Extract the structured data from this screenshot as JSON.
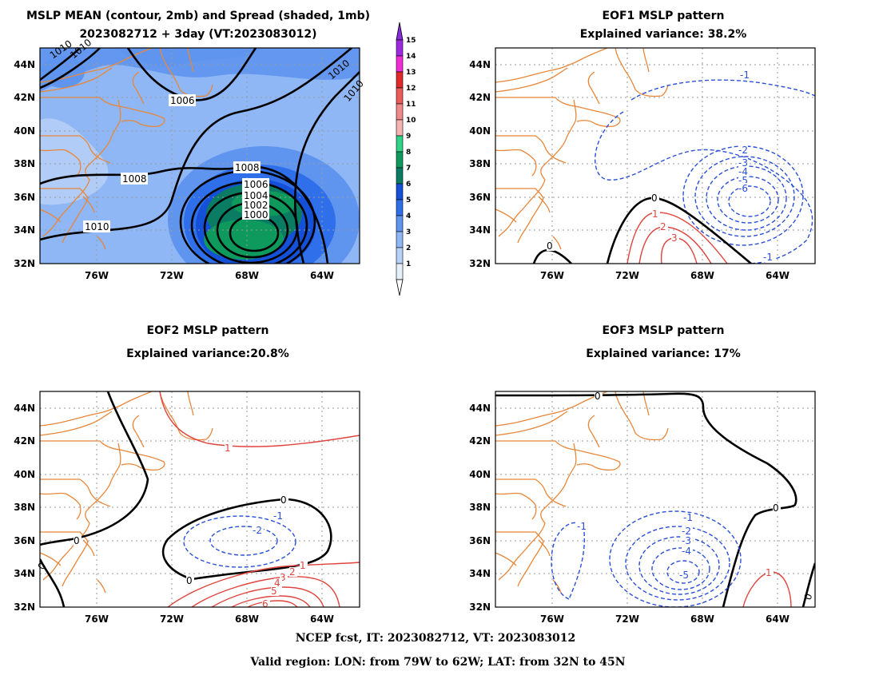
{
  "footer": {
    "line1": "NCEP fcst, IT: 2023082712, VT: 2023083012",
    "line2": "Valid region: LON: from 79W to 62W; LAT: from 32N to 45N"
  },
  "colors": {
    "coast": "#e8873a",
    "positive": "#e0443e",
    "negative": "#2a4fd8",
    "zero": "#000000"
  },
  "panels": {
    "p1": {
      "title1": "MSLP MEAN (contour, 2mb) and Spread (shaded, 1mb)",
      "title2": "2023082712 + 3day (VT:2023083012)"
    },
    "p2": {
      "title1": "EOF1 MSLP pattern",
      "title2": "Explained variance: 38.2%"
    },
    "p3": {
      "title1": "EOF2 MSLP pattern",
      "title2": "Explained variance:20.8%"
    },
    "p4": {
      "title1": "EOF3 MSLP pattern",
      "title2": "Explained variance: 17%"
    }
  },
  "chart_data": [
    {
      "type": "contour",
      "title": "MSLP MEAN (contour, 2mb) and Spread (shaded, 1mb)",
      "subtitle": "2023082712 + 3day (VT:2023083012)",
      "xlim": [
        -79,
        -62
      ],
      "ylim": [
        32,
        45
      ],
      "x_ticks": [
        "76W",
        "72W",
        "68W",
        "64W"
      ],
      "y_ticks": [
        "44N",
        "42N",
        "40N",
        "38N",
        "36N",
        "34N",
        "32N"
      ],
      "contour_labels": [
        "1010",
        "1010",
        "1006",
        "1008",
        "1008",
        "1010",
        "1010",
        "1010",
        "1006",
        "1004",
        "1002",
        "1000"
      ],
      "low_center": {
        "lon": -67.5,
        "lat": 34.5,
        "mslp": 998
      },
      "colorbar_levels": [
        "1",
        "2",
        "3",
        "4",
        "5",
        "6",
        "7",
        "8",
        "9",
        "10",
        "11",
        "12",
        "13",
        "14",
        "15"
      ],
      "colorbar_colors": [
        "#e6f0fb",
        "#b8d2f7",
        "#8fb6f5",
        "#5f95ef",
        "#2f6fea",
        "#1450d8",
        "#0a7c64",
        "#0e9a5c",
        "#2fd486",
        "#f6b3b3",
        "#f08a8a",
        "#ee5a5a",
        "#e22a2a",
        "#f02bd8",
        "#9d2ae0"
      ],
      "colorbar_arrow_colors": {
        "top": "#8a2be2",
        "bottom": "#ffffff"
      },
      "spread_max_center": {
        "lon": -67.5,
        "lat": 35.2,
        "spread": 7
      }
    },
    {
      "type": "contour",
      "title": "EOF1 MSLP pattern",
      "subtitle": "Explained variance: 38.2%",
      "explained_variance_percent": 38.2,
      "xlim": [
        -79,
        -62
      ],
      "ylim": [
        32,
        45
      ],
      "x_ticks": [
        "76W",
        "72W",
        "68W",
        "64W"
      ],
      "y_ticks": [
        "44N",
        "42N",
        "40N",
        "38N",
        "36N",
        "34N",
        "32N"
      ],
      "contour_labels": [
        "-1",
        "-2",
        "-3",
        "-4",
        "-5",
        "-6",
        "-1",
        "0",
        "0",
        "1",
        "2",
        "3"
      ],
      "negative_center": {
        "lon": -65.8,
        "lat": 35.8,
        "value": -6
      },
      "positive_center": {
        "lon": -69.5,
        "lat": 33.0,
        "value": 3
      }
    },
    {
      "type": "contour",
      "title": "EOF2 MSLP pattern",
      "subtitle": "Explained variance:20.8%",
      "explained_variance_percent": 20.8,
      "xlim": [
        -79,
        -62
      ],
      "ylim": [
        32,
        45
      ],
      "x_ticks": [
        "76W",
        "72W",
        "68W",
        "64W"
      ],
      "y_ticks": [
        "44N",
        "42N",
        "40N",
        "38N",
        "36N",
        "34N",
        "32N"
      ],
      "contour_labels": [
        "1",
        "0",
        "0",
        "0",
        "-1",
        "-2",
        "0",
        "1",
        "2",
        "3",
        "4",
        "5",
        "6"
      ],
      "negative_center": {
        "lon": -68.0,
        "lat": 35.9,
        "value": -2
      },
      "positive_center": {
        "lon": -68.0,
        "lat": 31.6,
        "value": 6
      }
    },
    {
      "type": "contour",
      "title": "EOF3 MSLP pattern",
      "subtitle": "Explained variance: 17%",
      "explained_variance_percent": 17,
      "xlim": [
        -79,
        -62
      ],
      "ylim": [
        32,
        45
      ],
      "x_ticks": [
        "76W",
        "72W",
        "68W",
        "64W"
      ],
      "y_ticks": [
        "44N",
        "42N",
        "40N",
        "38N",
        "36N",
        "34N",
        "32N"
      ],
      "contour_labels": [
        "0",
        "0",
        "0",
        "-1",
        "-1",
        "-2",
        "-3",
        "-4",
        "-5",
        "1"
      ],
      "negative_center": {
        "lon": -68.8,
        "lat": 34.0,
        "value": -5
      },
      "positive_center": {
        "lon": -63.3,
        "lat": 33.5,
        "value": 1
      }
    }
  ]
}
